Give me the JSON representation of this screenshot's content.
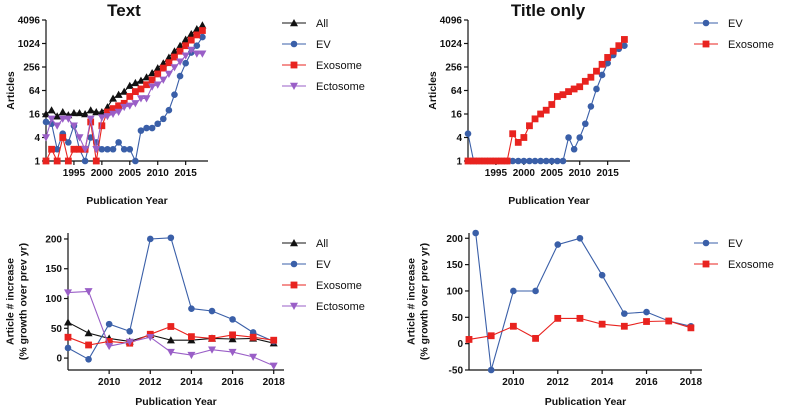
{
  "colors": {
    "All": "#111111",
    "EV": "#3a5fa8",
    "Exosome": "#e8231f",
    "Ectosome": "#9a5fc7"
  },
  "chart_data": [
    {
      "id": "text-articles",
      "type": "line",
      "title": "Text",
      "xlabel": "Publication Year",
      "ylabel": "Articles",
      "yscale": "log2",
      "xlim": [
        1990,
        2019
      ],
      "ylim": [
        1,
        4096
      ],
      "xticks": [
        1995,
        2000,
        2005,
        2010,
        2015
      ],
      "yticks": [
        1,
        4,
        16,
        64,
        256,
        1024,
        4096
      ],
      "legend": "right",
      "series": [
        {
          "name": "All",
          "marker": "triangle-up",
          "x": [
            1990,
            1991,
            1992,
            1993,
            1994,
            1995,
            1996,
            1997,
            1998,
            1999,
            2000,
            2001,
            2002,
            2003,
            2004,
            2005,
            2006,
            2007,
            2008,
            2009,
            2010,
            2011,
            2012,
            2013,
            2014,
            2015,
            2016,
            2017,
            2018
          ],
          "y": [
            16,
            20,
            14,
            18,
            15,
            17,
            17,
            16,
            20,
            18,
            18,
            24,
            40,
            50,
            60,
            85,
            100,
            115,
            140,
            180,
            240,
            320,
            450,
            650,
            900,
            1300,
            1800,
            2400,
            3000
          ]
        },
        {
          "name": "EV",
          "marker": "circle",
          "x": [
            1990,
            1991,
            1992,
            1993,
            1994,
            1995,
            1996,
            1997,
            1998,
            1999,
            2000,
            2001,
            2002,
            2003,
            2004,
            2005,
            2006,
            2007,
            2008,
            2009,
            2010,
            2011,
            2012,
            2013,
            2014,
            2015,
            2016,
            2017,
            2018
          ],
          "y": [
            10,
            9,
            2,
            5,
            3,
            8,
            2,
            1,
            4,
            3,
            2,
            2,
            2,
            3,
            2,
            2,
            1,
            6,
            7,
            7,
            9,
            12,
            20,
            50,
            150,
            320,
            600,
            900,
            1500
          ]
        },
        {
          "name": "Exosome",
          "marker": "square",
          "x": [
            1990,
            1991,
            1992,
            1993,
            1994,
            1995,
            1996,
            1997,
            1998,
            1999,
            2000,
            2001,
            2002,
            2003,
            2004,
            2005,
            2006,
            2007,
            2008,
            2009,
            2010,
            2011,
            2012,
            2013,
            2014,
            2015,
            2016,
            2017,
            2018
          ],
          "y": [
            1,
            2,
            1,
            4,
            1,
            2,
            2,
            2,
            10,
            1,
            8,
            18,
            22,
            26,
            30,
            45,
            60,
            70,
            90,
            120,
            170,
            240,
            330,
            460,
            650,
            900,
            1250,
            1700,
            2200
          ]
        },
        {
          "name": "Ectosome",
          "marker": "triangle-down",
          "x": [
            1990,
            1991,
            1992,
            1993,
            1994,
            1995,
            1996,
            1997,
            1998,
            1999,
            2000,
            2001,
            2002,
            2003,
            2004,
            2005,
            2006,
            2007,
            2008,
            2009,
            2010,
            2011,
            2012,
            2013,
            2014,
            2015,
            2016,
            2017,
            2018
          ],
          "y": [
            4,
            12,
            8,
            12,
            12,
            8,
            4,
            2,
            12,
            2,
            13,
            14,
            16,
            18,
            24,
            26,
            30,
            40,
            40,
            80,
            90,
            120,
            170,
            250,
            350,
            500,
            700,
            560,
            560
          ]
        }
      ]
    },
    {
      "id": "title-articles",
      "type": "line",
      "title": "Title only",
      "xlabel": "Publication Year",
      "ylabel": "Articles",
      "yscale": "log2",
      "xlim": [
        1990,
        2019
      ],
      "ylim": [
        1,
        4096
      ],
      "xticks": [
        1995,
        2000,
        2005,
        2010,
        2015
      ],
      "yticks": [
        1,
        4,
        16,
        64,
        256,
        1024,
        4096
      ],
      "legend": "right",
      "series": [
        {
          "name": "EV",
          "marker": "circle",
          "x": [
            1990,
            1991,
            1992,
            1993,
            1994,
            1995,
            1996,
            1997,
            1998,
            1999,
            2000,
            2001,
            2002,
            2003,
            2004,
            2005,
            2006,
            2007,
            2008,
            2009,
            2010,
            2011,
            2012,
            2013,
            2014,
            2015,
            2016,
            2017,
            2018
          ],
          "y": [
            5,
            1,
            1,
            1,
            1,
            1,
            1,
            1,
            1,
            1,
            1,
            1,
            1,
            1,
            1,
            1,
            1,
            1,
            4,
            2,
            4,
            9,
            25,
            70,
            160,
            320,
            520,
            750,
            900
          ]
        },
        {
          "name": "Exosome",
          "marker": "square",
          "x": [
            1990,
            1991,
            1992,
            1993,
            1994,
            1995,
            1996,
            1997,
            1998,
            1999,
            2000,
            2001,
            2002,
            2003,
            2004,
            2005,
            2006,
            2007,
            2008,
            2009,
            2010,
            2011,
            2012,
            2013,
            2014,
            2015,
            2016,
            2017,
            2018
          ],
          "y": [
            1,
            1,
            1,
            1,
            1,
            1,
            1,
            1,
            5,
            3,
            4,
            8,
            12,
            16,
            20,
            28,
            45,
            50,
            60,
            70,
            80,
            110,
            140,
            200,
            300,
            450,
            650,
            900,
            1300
          ]
        }
      ]
    },
    {
      "id": "text-growth",
      "type": "line",
      "title": "",
      "xlabel": "Publication Year",
      "ylabel": "Article # increase\n(% growth over prev yr)",
      "yscale": "linear",
      "xlim": [
        2008,
        2018.5
      ],
      "ylim": [
        -20,
        210
      ],
      "xticks": [
        2010,
        2012,
        2014,
        2016,
        2018
      ],
      "yticks": [
        0,
        50,
        100,
        150,
        200
      ],
      "legend": "right",
      "series": [
        {
          "name": "All",
          "marker": "triangle-up",
          "x": [
            2008,
            2009,
            2010,
            2011,
            2012,
            2013,
            2014,
            2015,
            2016,
            2017,
            2018
          ],
          "y": [
            60,
            42,
            33,
            28,
            39,
            30,
            30,
            33,
            32,
            33,
            25
          ]
        },
        {
          "name": "EV",
          "marker": "circle",
          "x": [
            2008,
            2009,
            2010,
            2011,
            2012,
            2013,
            2014,
            2015,
            2016,
            2017,
            2018
          ],
          "y": [
            17,
            -2,
            57,
            45,
            200,
            202,
            83,
            79,
            65,
            43,
            28
          ]
        },
        {
          "name": "Exosome",
          "marker": "square",
          "x": [
            2008,
            2009,
            2010,
            2011,
            2012,
            2013,
            2014,
            2015,
            2016,
            2017,
            2018
          ],
          "y": [
            35,
            22,
            28,
            25,
            40,
            53,
            36,
            33,
            39,
            35,
            30
          ]
        },
        {
          "name": "Ectosome",
          "marker": "triangle-down",
          "x": [
            2008,
            2009,
            2010,
            2011,
            2012,
            2013,
            2014,
            2015,
            2016,
            2017,
            2018
          ],
          "y": [
            110,
            112,
            20,
            27,
            35,
            10,
            5,
            14,
            10,
            2,
            -13
          ]
        }
      ]
    },
    {
      "id": "title-growth",
      "type": "line",
      "title": "",
      "xlabel": "Publication Year",
      "ylabel": "Article # increase\n(% growth over prev yr)",
      "yscale": "linear",
      "xlim": [
        2008,
        2018.5
      ],
      "ylim": [
        -50,
        210
      ],
      "xticks": [
        2010,
        2012,
        2014,
        2016,
        2018
      ],
      "yticks": [
        -50,
        0,
        50,
        100,
        150,
        200
      ],
      "legend": "right",
      "series": [
        {
          "name": "EV",
          "marker": "circle",
          "x": [
            2008.3,
            2009,
            2010,
            2011,
            2012,
            2013,
            2014,
            2015,
            2016,
            2017,
            2018
          ],
          "y": [
            210,
            -50,
            100,
            100,
            188,
            200,
            130,
            57,
            60,
            43,
            33
          ]
        },
        {
          "name": "Exosome",
          "marker": "square",
          "x": [
            2008,
            2009,
            2010,
            2011,
            2012,
            2013,
            2014,
            2015,
            2016,
            2017,
            2018
          ],
          "y": [
            8,
            15,
            33,
            10,
            48,
            48,
            37,
            33,
            42,
            43,
            30
          ]
        }
      ]
    }
  ]
}
